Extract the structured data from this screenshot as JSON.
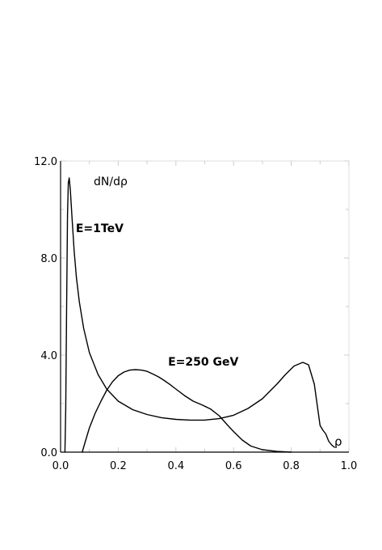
{
  "chart_data": {
    "type": "line",
    "ylabel": "dN/dρ",
    "xlabel": "ρ",
    "xlim": [
      0.0,
      1.0
    ],
    "ylim": [
      0.0,
      12.0
    ],
    "x_ticks": [
      "0.0",
      "0.2",
      "0.4",
      "0.6",
      "0.8",
      "1.0"
    ],
    "y_ticks": [
      "0.0",
      "4.0",
      "8.0",
      "12.0"
    ],
    "grid": false,
    "series": [
      {
        "name": "E=1TeV",
        "x": [
          0.015,
          0.018,
          0.021,
          0.024,
          0.027,
          0.03,
          0.034,
          0.04,
          0.047,
          0.055,
          0.065,
          0.08,
          0.1,
          0.13,
          0.16,
          0.2,
          0.25,
          0.3,
          0.35,
          0.4,
          0.45,
          0.5,
          0.55,
          0.6,
          0.65,
          0.7,
          0.75,
          0.78,
          0.81,
          0.84,
          0.86,
          0.88,
          0.9,
          0.91,
          0.92,
          0.93,
          0.94,
          0.95
        ],
        "y": [
          0.0,
          1.8,
          6.0,
          9.8,
          11.1,
          11.3,
          10.8,
          9.6,
          8.3,
          7.2,
          6.2,
          5.1,
          4.1,
          3.2,
          2.6,
          2.1,
          1.75,
          1.55,
          1.42,
          1.35,
          1.32,
          1.32,
          1.38,
          1.52,
          1.8,
          2.2,
          2.8,
          3.2,
          3.55,
          3.7,
          3.6,
          2.8,
          1.1,
          0.9,
          0.75,
          0.45,
          0.3,
          0.2
        ]
      },
      {
        "name": "E=250 GeV",
        "x": [
          0.075,
          0.085,
          0.1,
          0.12,
          0.14,
          0.16,
          0.18,
          0.2,
          0.22,
          0.24,
          0.26,
          0.28,
          0.3,
          0.32,
          0.34,
          0.36,
          0.38,
          0.4,
          0.43,
          0.46,
          0.49,
          0.52,
          0.55,
          0.58,
          0.6,
          0.63,
          0.66,
          0.7,
          0.75,
          0.8
        ],
        "y": [
          0.0,
          0.4,
          1.0,
          1.6,
          2.1,
          2.55,
          2.9,
          3.15,
          3.3,
          3.38,
          3.4,
          3.38,
          3.33,
          3.22,
          3.1,
          2.95,
          2.78,
          2.6,
          2.33,
          2.1,
          1.95,
          1.78,
          1.5,
          1.1,
          0.85,
          0.5,
          0.25,
          0.1,
          0.03,
          0.0
        ]
      }
    ],
    "annotations": [
      {
        "text": "E=1TeV",
        "x": 0.05,
        "y": 9.1
      },
      {
        "text": "E=250 GeV",
        "x": 0.37,
        "y": 3.6
      }
    ],
    "colors": {
      "line": "#000000",
      "axis": "#000000",
      "tick": "#cccccc",
      "frame": "#dddddd"
    }
  }
}
